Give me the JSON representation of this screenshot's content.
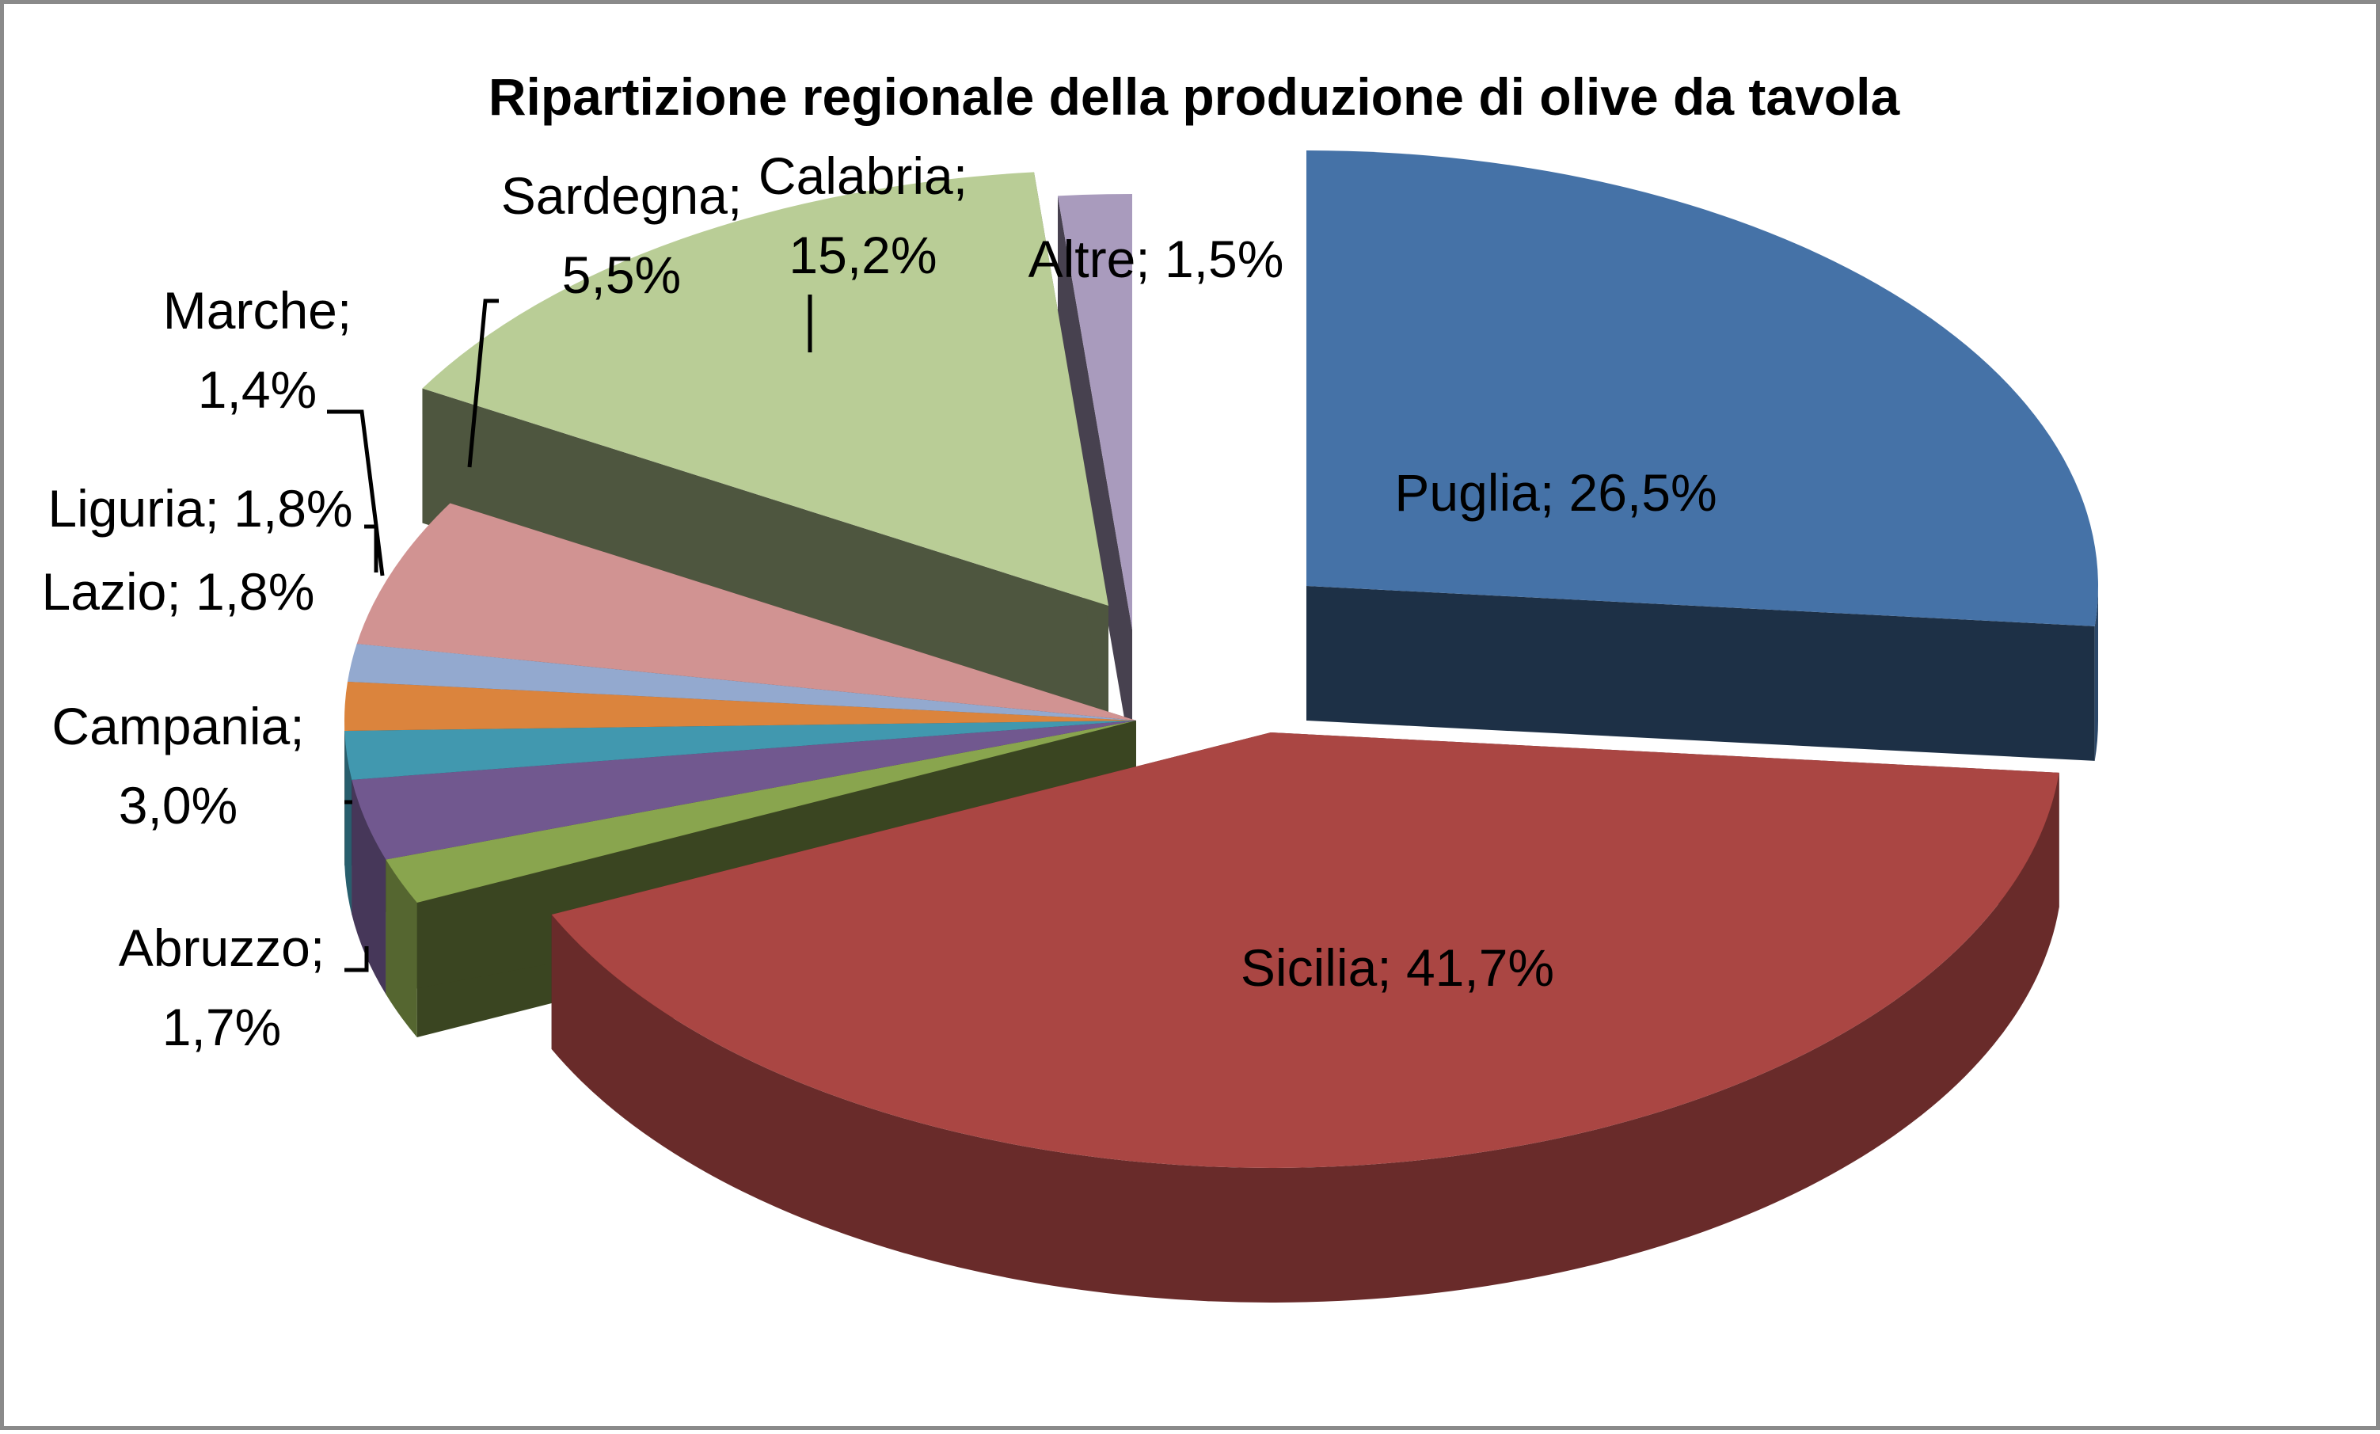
{
  "chart_data": {
    "type": "pie",
    "title": "Ripartizione regionale della produzione di olive da tavola",
    "slices": [
      {
        "name": "Puglia",
        "value": 26.5,
        "color": "#4572A7",
        "label_lines": [
          "Puglia; 26,5%"
        ]
      },
      {
        "name": "Sicilia",
        "value": 41.7,
        "color": "#AA4643",
        "label_lines": [
          "Sicilia; 41,7%"
        ]
      },
      {
        "name": "Abruzzo",
        "value": 1.7,
        "color": "#89A54E",
        "label_lines": [
          "Abruzzo;",
          "1,7%"
        ]
      },
      {
        "name": "Campania",
        "value": 3.0,
        "color": "#71588F",
        "label_lines": [
          "Campania;",
          "3,0%"
        ]
      },
      {
        "name": "Lazio",
        "value": 1.8,
        "color": "#4198AF",
        "label_lines": [
          "Lazio; 1,8%"
        ]
      },
      {
        "name": "Liguria",
        "value": 1.8,
        "color": "#DB843D",
        "label_lines": [
          "Liguria; 1,8%"
        ]
      },
      {
        "name": "Marche",
        "value": 1.4,
        "color": "#93A9CF",
        "label_lines": [
          "Marche;",
          "1,4%"
        ]
      },
      {
        "name": "Sardegna",
        "value": 5.5,
        "color": "#D19392",
        "label_lines": [
          "Sardegna;",
          "5,5%"
        ]
      },
      {
        "name": "Calabria",
        "value": 15.2,
        "color": "#B9CD96",
        "label_lines": [
          "Calabria;",
          "15,2%"
        ]
      },
      {
        "name": "Altre",
        "value": 1.5,
        "color": "#A99BBD",
        "label_lines": [
          "Altre; 1,5%"
        ]
      }
    ],
    "exploded": true,
    "three_d": true,
    "legend": "none"
  }
}
